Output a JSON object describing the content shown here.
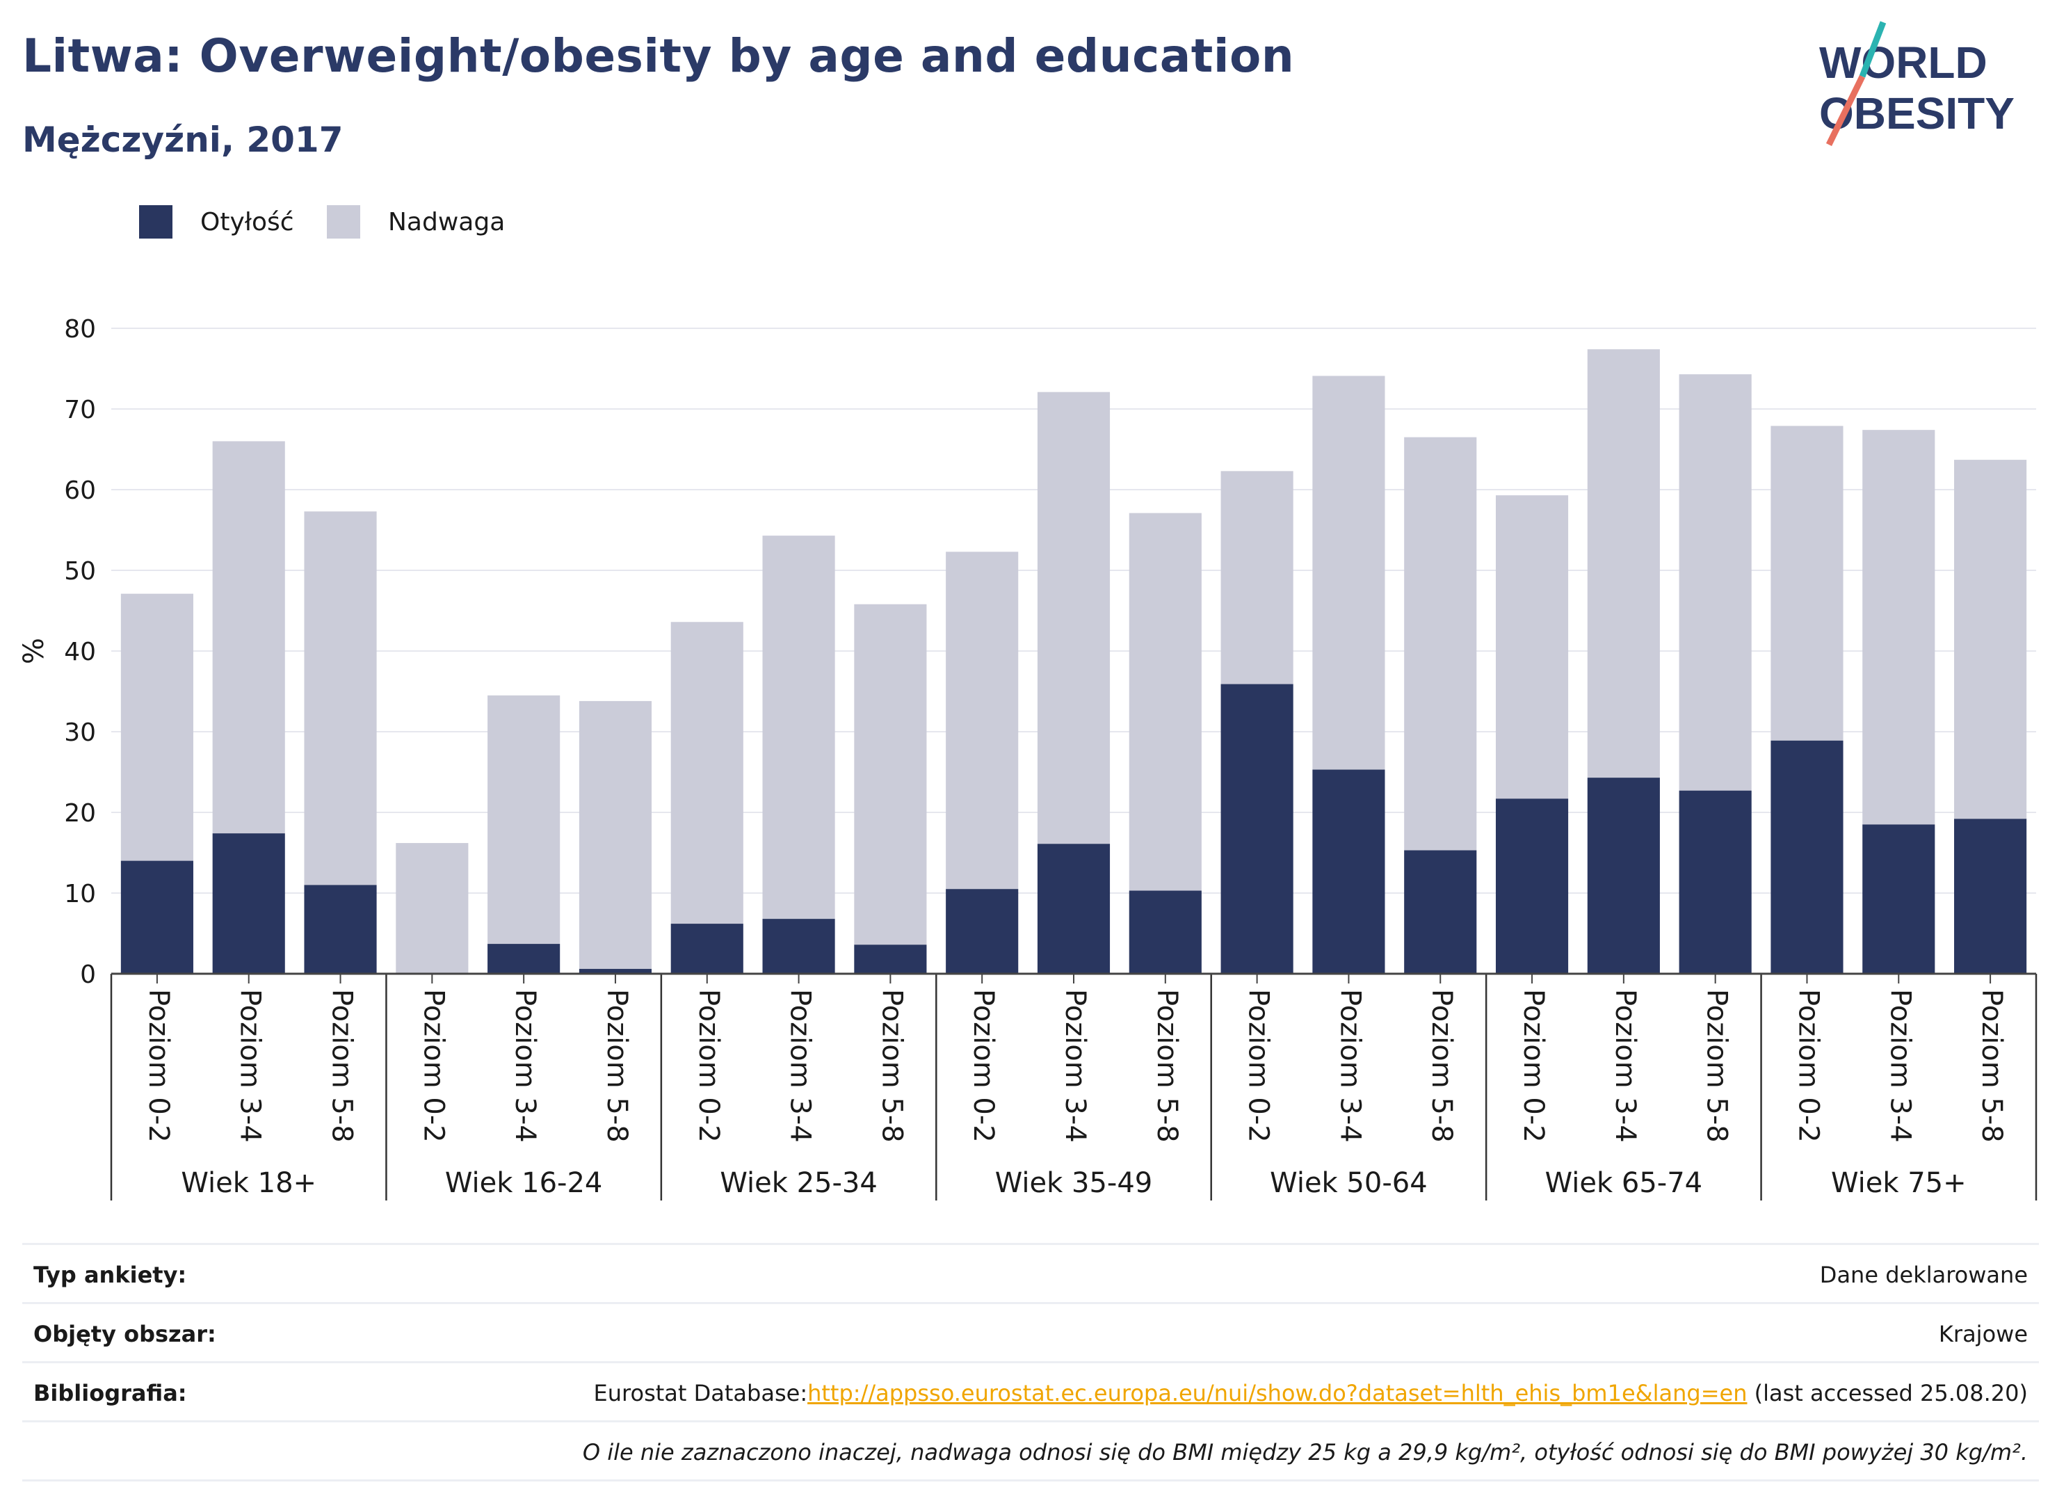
{
  "header": {
    "title": "Litwa: Overweight/obesity by age and education",
    "subtitle": "Mężczyźni, 2017"
  },
  "logo": {
    "line1": "WORLD",
    "line2": "OBESITY"
  },
  "colors": {
    "obesity": "#29365f",
    "overweight": "#cbccd9",
    "title": "#2b3a67",
    "logo_teal": "#2bb3b1",
    "logo_coral": "#e8705f"
  },
  "legend": [
    {
      "label": "Otyłość",
      "color": "#29365f"
    },
    {
      "label": "Nadwaga",
      "color": "#cbccd9"
    }
  ],
  "chart_data": {
    "type": "bar",
    "stacked": true,
    "ylabel": "%",
    "ylim": [
      0,
      80
    ],
    "yticks": [
      0,
      10,
      20,
      30,
      40,
      50,
      60,
      70,
      80
    ],
    "grid": true,
    "groups": [
      {
        "label": "Wiek 18+",
        "categories": [
          "Poziom 0-2",
          "Poziom 3-4",
          "Poziom 5-8"
        ]
      },
      {
        "label": "Wiek 16-24",
        "categories": [
          "Poziom 0-2",
          "Poziom 3-4",
          "Poziom 5-8"
        ]
      },
      {
        "label": "Wiek 25-34",
        "categories": [
          "Poziom 0-2",
          "Poziom 3-4",
          "Poziom 5-8"
        ]
      },
      {
        "label": "Wiek 35-49",
        "categories": [
          "Poziom 0-2",
          "Poziom 3-4",
          "Poziom 5-8"
        ]
      },
      {
        "label": "Wiek 50-64",
        "categories": [
          "Poziom 0-2",
          "Poziom 3-4",
          "Poziom 5-8"
        ]
      },
      {
        "label": "Wiek 65-74",
        "categories": [
          "Poziom 0-2",
          "Poziom 3-4",
          "Poziom 5-8"
        ]
      },
      {
        "label": "Wiek 75+",
        "categories": [
          "Poziom 0-2",
          "Poziom 3-4",
          "Poziom 5-8"
        ]
      }
    ],
    "series": [
      {
        "name": "Otyłość",
        "values": [
          14.0,
          17.4,
          11.0,
          0.0,
          3.7,
          0.6,
          6.2,
          6.8,
          3.6,
          10.5,
          16.1,
          10.3,
          35.9,
          25.3,
          15.3,
          21.7,
          24.3,
          22.7,
          28.9,
          18.5,
          19.2
        ]
      },
      {
        "name": "Nadwaga",
        "values": [
          33.1,
          48.6,
          46.3,
          16.2,
          30.8,
          33.2,
          37.4,
          47.5,
          42.2,
          41.8,
          56.0,
          46.8,
          26.4,
          48.8,
          51.2,
          37.6,
          53.1,
          51.6,
          39.0,
          48.9,
          44.5
        ]
      }
    ]
  },
  "info": {
    "survey_type_label": "Typ ankiety:",
    "survey_type_value": "Dane deklarowane",
    "coverage_label": "Objęty obszar:",
    "coverage_value": "Krajowe",
    "bibliography_label": "Bibliografia:",
    "bibliography_prefix": "Eurostat Database:",
    "bibliography_link": "http://appsso.eurostat.ec.europa.eu/nui/show.do?dataset=hlth_ehis_bm1e&lang=en",
    "bibliography_suffix": " (last accessed 25.08.20)",
    "note": "O ile nie zaznaczono inaczej, nadwaga odnosi się do BMI między 25 kg a 29,9 kg/m², otyłość odnosi się do BMI powyżej 30 kg/m²."
  }
}
